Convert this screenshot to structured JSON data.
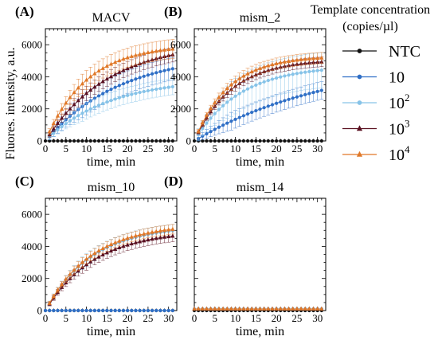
{
  "figure": {
    "ylabel": "Fluores. intensity, a.u.",
    "legend_title_line1": "Template concentration",
    "legend_title_line2": "(copies/µl)"
  },
  "legend": [
    {
      "name": "NTC",
      "color": "#111111",
      "marker": "circle"
    },
    {
      "name": "10",
      "color": "#2f6fc6",
      "marker": "circle"
    },
    {
      "name": "10^2",
      "label_base": "10",
      "label_sup": "2",
      "color": "#86c3e8",
      "marker": "circle"
    },
    {
      "name": "10^3",
      "label_base": "10",
      "label_sup": "3",
      "color": "#5a1020",
      "marker": "triangle"
    },
    {
      "name": "10^4",
      "label_base": "10",
      "label_sup": "4",
      "color": "#e07828",
      "marker": "triangle"
    }
  ],
  "chart_data": [
    {
      "type": "line",
      "panel": "(A)",
      "title": "MACV",
      "xlabel": "time, min",
      "xlim": [
        0,
        32
      ],
      "ylim": [
        0,
        7000
      ],
      "xticks": [
        0,
        5,
        10,
        15,
        20,
        25,
        30
      ],
      "yticks": [
        0,
        2000,
        4000,
        6000
      ],
      "series": [
        {
          "name": "NTC",
          "x0": 0,
          "dx": 1,
          "n": 32,
          "values": [
            0,
            0,
            0,
            0,
            0,
            0,
            0,
            0,
            0,
            0,
            0,
            0,
            0,
            0,
            0,
            0,
            0,
            0,
            0,
            0,
            0,
            0,
            0,
            0,
            0,
            0,
            0,
            0,
            0,
            0,
            0,
            0
          ]
        },
        {
          "name": "10",
          "x0": 1,
          "dx": 1,
          "n": 31,
          "plateau": 5500,
          "k": 0.055,
          "err": 700
        },
        {
          "name": "10^2",
          "x0": 1,
          "dx": 1,
          "n": 31,
          "plateau": 3900,
          "k": 0.065,
          "err": 500
        },
        {
          "name": "10^3",
          "x0": 1,
          "dx": 1,
          "n": 31,
          "plateau": 6200,
          "k": 0.065,
          "err": 450
        },
        {
          "name": "10^4",
          "x0": 1,
          "dx": 1,
          "n": 31,
          "plateau": 6000,
          "k": 0.1,
          "err": 600
        }
      ]
    },
    {
      "type": "line",
      "panel": "(B)",
      "title": "mism_2",
      "xlabel": "time, min",
      "xlim": [
        0,
        32
      ],
      "ylim": [
        0,
        7000
      ],
      "xticks": [
        0,
        5,
        10,
        15,
        20,
        25,
        30
      ],
      "yticks": [
        0,
        2000,
        4000,
        6000
      ],
      "series": [
        {
          "name": "NTC",
          "x0": 0,
          "dx": 1,
          "n": 32,
          "values": [
            0,
            0,
            0,
            0,
            0,
            0,
            0,
            0,
            0,
            0,
            0,
            0,
            0,
            0,
            0,
            0,
            0,
            0,
            0,
            0,
            0,
            0,
            0,
            0,
            0,
            0,
            0,
            0,
            0,
            0,
            0,
            0
          ]
        },
        {
          "name": "10",
          "x0": 1,
          "dx": 1,
          "n": 31,
          "plateau": 5200,
          "k": 0.03,
          "err": 550
        },
        {
          "name": "10^2",
          "x0": 1,
          "dx": 1,
          "n": 31,
          "plateau": 4700,
          "k": 0.09,
          "err": 1100
        },
        {
          "name": "10^3",
          "x0": 1,
          "dx": 1,
          "n": 31,
          "plateau": 5100,
          "k": 0.11,
          "err": 300
        },
        {
          "name": "10^4",
          "x0": 1,
          "dx": 1,
          "n": 31,
          "plateau": 5300,
          "k": 0.12,
          "err": 350
        }
      ]
    },
    {
      "type": "line",
      "panel": "(C)",
      "title": "mism_10",
      "xlabel": "time, min",
      "xlim": [
        0,
        32
      ],
      "ylim": [
        0,
        7000
      ],
      "xticks": [
        0,
        5,
        10,
        15,
        20,
        25,
        30
      ],
      "yticks": [
        0,
        2000,
        4000,
        6000
      ],
      "series": [
        {
          "name": "NTC",
          "x0": 0,
          "dx": 1,
          "n": 32,
          "values": [
            0,
            0,
            0,
            0,
            0,
            0,
            0,
            0,
            0,
            0,
            0,
            0,
            0,
            0,
            0,
            0,
            0,
            0,
            0,
            0,
            0,
            0,
            0,
            0,
            0,
            0,
            0,
            0,
            0,
            0,
            0,
            0
          ]
        },
        {
          "name": "10",
          "x0": 0,
          "dx": 1,
          "n": 32,
          "values": [
            0,
            0,
            0,
            0,
            0,
            0,
            0,
            0,
            0,
            0,
            0,
            0,
            0,
            0,
            0,
            0,
            0,
            0,
            0,
            0,
            0,
            0,
            0,
            0,
            0,
            0,
            0,
            0,
            0,
            0,
            0,
            0
          ]
        },
        {
          "name": "10^2",
          "x0": 1,
          "dx": 1,
          "n": 31,
          "plateau": 5300,
          "k": 0.09,
          "err": 400
        },
        {
          "name": "10^3",
          "x0": 1,
          "dx": 1,
          "n": 31,
          "plateau": 5000,
          "k": 0.085,
          "err": 350
        },
        {
          "name": "10^4",
          "x0": 1,
          "dx": 1,
          "n": 31,
          "plateau": 5400,
          "k": 0.09,
          "err": 300
        }
      ]
    },
    {
      "type": "line",
      "panel": "(D)",
      "title": "mism_14",
      "xlabel": "time, min",
      "xlim": [
        0,
        32
      ],
      "ylim": [
        0,
        7000
      ],
      "xticks": [
        0,
        5,
        10,
        15,
        20,
        25,
        30
      ],
      "yticks": [],
      "series": [
        {
          "name": "NTC",
          "x0": 0,
          "dx": 1,
          "n": 32,
          "values": [
            0,
            0,
            0,
            0,
            0,
            0,
            0,
            0,
            0,
            0,
            0,
            0,
            0,
            0,
            0,
            0,
            0,
            0,
            0,
            0,
            0,
            0,
            0,
            0,
            0,
            0,
            0,
            0,
            0,
            0,
            0,
            0
          ]
        },
        {
          "name": "10",
          "x0": 0,
          "dx": 1,
          "n": 32,
          "values": [
            100,
            100,
            100,
            100,
            100,
            100,
            100,
            100,
            100,
            100,
            100,
            100,
            100,
            100,
            100,
            100,
            100,
            100,
            100,
            100,
            100,
            100,
            100,
            100,
            100,
            100,
            100,
            100,
            100,
            100,
            100,
            100
          ]
        },
        {
          "name": "10^2",
          "x0": 0,
          "dx": 1,
          "n": 32,
          "values": [
            100,
            100,
            100,
            100,
            100,
            100,
            100,
            100,
            100,
            100,
            100,
            100,
            100,
            100,
            100,
            100,
            100,
            100,
            100,
            100,
            100,
            100,
            100,
            100,
            100,
            100,
            100,
            100,
            100,
            100,
            100,
            100
          ]
        },
        {
          "name": "10^3",
          "x0": 0,
          "dx": 1,
          "n": 32,
          "values": [
            100,
            100,
            100,
            100,
            100,
            100,
            100,
            100,
            100,
            100,
            100,
            100,
            100,
            100,
            100,
            100,
            100,
            100,
            100,
            100,
            100,
            100,
            100,
            100,
            100,
            100,
            100,
            100,
            100,
            100,
            100,
            100
          ]
        },
        {
          "name": "10^4",
          "x0": 0,
          "dx": 1,
          "n": 32,
          "values": [
            100,
            100,
            100,
            100,
            100,
            100,
            100,
            100,
            100,
            100,
            100,
            100,
            100,
            100,
            100,
            100,
            100,
            100,
            100,
            100,
            100,
            100,
            100,
            100,
            100,
            100,
            100,
            100,
            100,
            100,
            100,
            100
          ]
        }
      ]
    }
  ]
}
